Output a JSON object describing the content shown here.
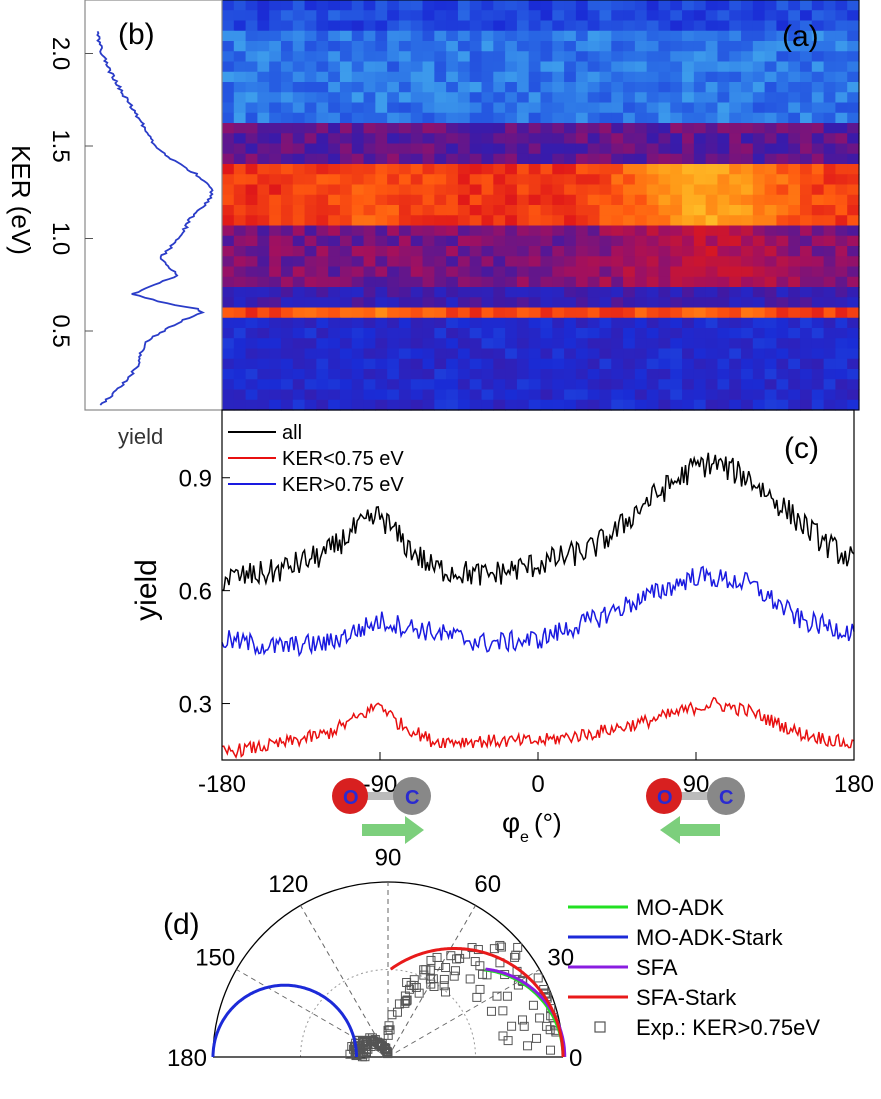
{
  "chart_data": [
    {
      "panel": "a",
      "type": "heatmap",
      "panel_label": "(a)",
      "ylim": [
        0.1,
        2.15
      ],
      "xlim": [
        -180,
        180
      ],
      "columns": 54,
      "rows": 40,
      "colormap": [
        "#4ec8f2",
        "#2b6fe6",
        "#1a2cd6",
        "#3b1aa8",
        "#a01060",
        "#e01818",
        "#ff5a10",
        "#ff9a18",
        "#ffd030"
      ],
      "bands": [
        {
          "ker_min": 1.6,
          "ker_max": 2.15,
          "level": 0.12
        },
        {
          "ker_min": 1.42,
          "ker_max": 1.6,
          "level": 0.42
        },
        {
          "ker_min": 1.05,
          "ker_max": 1.42,
          "level": 0.68
        },
        {
          "ker_min": 0.75,
          "ker_max": 1.05,
          "level": 0.45
        },
        {
          "ker_min": 0.65,
          "ker_max": 0.75,
          "level": 0.35
        },
        {
          "ker_min": 0.55,
          "ker_max": 0.65,
          "level": 0.7
        },
        {
          "ker_min": 0.1,
          "ker_max": 0.55,
          "level": 0.28
        }
      ]
    },
    {
      "panel": "b",
      "type": "line",
      "panel_label": "(b)",
      "ylabel": "KER (eV)",
      "xlabel": "yield",
      "ylim": [
        0.1,
        2.15
      ],
      "yticks": [
        0.5,
        1.0,
        1.5,
        2.0
      ],
      "ytick_labels": [
        "0.5",
        "1.0",
        "1.5",
        "2.0"
      ],
      "series": [
        {
          "color": "#2a3cc8",
          "ker": [
            0.1,
            0.2,
            0.3,
            0.4,
            0.45,
            0.5,
            0.55,
            0.6,
            0.62,
            0.65,
            0.7,
            0.75,
            0.8,
            0.85,
            0.9,
            0.95,
            1.0,
            1.05,
            1.1,
            1.15,
            1.2,
            1.25,
            1.3,
            1.35,
            1.4,
            1.45,
            1.5,
            1.6,
            1.7,
            1.8,
            1.9,
            2.0,
            2.1
          ],
          "yield": [
            0.05,
            0.22,
            0.35,
            0.4,
            0.45,
            0.58,
            0.72,
            0.9,
            0.86,
            0.6,
            0.32,
            0.5,
            0.7,
            0.62,
            0.56,
            0.64,
            0.7,
            0.76,
            0.8,
            0.88,
            0.96,
            0.99,
            0.95,
            0.85,
            0.72,
            0.6,
            0.5,
            0.42,
            0.32,
            0.22,
            0.13,
            0.06,
            0.02
          ]
        }
      ]
    },
    {
      "panel": "c",
      "type": "line",
      "panel_label": "(c)",
      "ylabel": "yield",
      "xlabel_symbol": "φ",
      "xlabel_sub": "e",
      "xlabel_unit": "(°)",
      "xlim": [
        -180,
        180
      ],
      "ylim": [
        0.15,
        1.08
      ],
      "xticks": [
        -180,
        -90,
        0,
        90,
        180
      ],
      "xtick_labels": [
        "-180",
        "-90",
        "0",
        "90",
        "180"
      ],
      "yticks": [
        0.3,
        0.6,
        0.9
      ],
      "ytick_labels": [
        "0.3",
        "0.6",
        "0.9"
      ],
      "series": [
        {
          "name": "all",
          "color": "#000000",
          "noise": 0.035,
          "x": [
            -180,
            -150,
            -120,
            -105,
            -90,
            -75,
            -60,
            -30,
            0,
            30,
            45,
            60,
            90,
            100,
            120,
            150,
            165,
            180
          ],
          "y": [
            0.63,
            0.65,
            0.7,
            0.76,
            0.8,
            0.72,
            0.66,
            0.64,
            0.67,
            0.71,
            0.76,
            0.83,
            0.93,
            0.94,
            0.9,
            0.78,
            0.72,
            0.68
          ]
        },
        {
          "name": "KER<0.75 eV",
          "color": "#e81010",
          "noise": 0.018,
          "x": [
            -180,
            -150,
            -120,
            -100,
            -90,
            -80,
            -60,
            -30,
            0,
            30,
            60,
            90,
            100,
            120,
            150,
            180
          ],
          "y": [
            0.17,
            0.19,
            0.22,
            0.27,
            0.3,
            0.25,
            0.2,
            0.2,
            0.2,
            0.22,
            0.25,
            0.29,
            0.3,
            0.28,
            0.22,
            0.19
          ]
        },
        {
          "name": "KER>0.75 eV",
          "color": "#1a1ae0",
          "noise": 0.028,
          "x": [
            -180,
            -150,
            -120,
            -90,
            -60,
            -30,
            0,
            30,
            60,
            90,
            120,
            150,
            180
          ],
          "y": [
            0.47,
            0.45,
            0.46,
            0.52,
            0.49,
            0.46,
            0.47,
            0.52,
            0.58,
            0.64,
            0.62,
            0.52,
            0.49
          ]
        }
      ],
      "legend": "top-left",
      "molecule_labels": [
        "O",
        "C"
      ]
    },
    {
      "panel": "d",
      "type": "polar",
      "panel_label": "(d)",
      "angle_labels": [
        {
          "deg": 0,
          "text": "0"
        },
        {
          "deg": 30,
          "text": "30"
        },
        {
          "deg": 60,
          "text": "60"
        },
        {
          "deg": 90,
          "text": "90"
        },
        {
          "deg": 120,
          "text": "120"
        },
        {
          "deg": 150,
          "text": "150"
        },
        {
          "deg": 180,
          "text": "180"
        }
      ],
      "rmax": 1.0,
      "series": [
        {
          "name": "MO-ADK",
          "color": "#22e022",
          "kind": "circle",
          "center": 0.5,
          "radius": 0.5,
          "from_deg": 0,
          "to_deg": 84
        },
        {
          "name": "MO-ADK-Stark",
          "color": "#1c2ad8",
          "kind": "circle",
          "center": -0.59,
          "radius": 0.41,
          "from_deg": 0,
          "to_deg": 180
        },
        {
          "name": "SFA",
          "color": "#8a1ce0",
          "kind": "circle",
          "center": 0.505,
          "radius": 0.505,
          "from_deg": 0,
          "to_deg": 84
        },
        {
          "name": "SFA-Stark",
          "color": "#e81a1a",
          "kind": "circle",
          "center": 0.38,
          "radius": 0.62,
          "from_deg": 0,
          "to_deg": 126
        },
        {
          "name": "Exp.: KER>0.75eV",
          "color": "#555555",
          "kind": "scatter",
          "count": 180
        }
      ],
      "legend": "top-right"
    }
  ]
}
